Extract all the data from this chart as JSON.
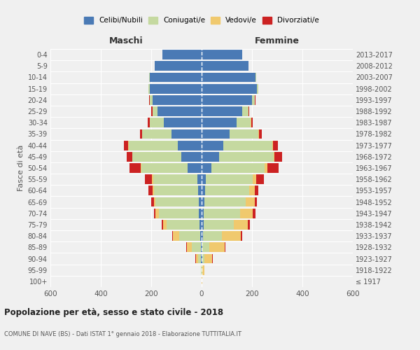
{
  "age_groups": [
    "100+",
    "95-99",
    "90-94",
    "85-89",
    "80-84",
    "75-79",
    "70-74",
    "65-69",
    "60-64",
    "55-59",
    "50-54",
    "45-49",
    "40-44",
    "35-39",
    "30-34",
    "25-29",
    "20-24",
    "15-19",
    "10-14",
    "5-9",
    "0-4"
  ],
  "birth_years": [
    "≤ 1917",
    "1918-1922",
    "1923-1927",
    "1928-1932",
    "1933-1937",
    "1938-1942",
    "1943-1947",
    "1948-1952",
    "1953-1957",
    "1958-1962",
    "1963-1967",
    "1968-1972",
    "1973-1977",
    "1978-1982",
    "1983-1987",
    "1988-1992",
    "1993-1997",
    "1998-2002",
    "2003-2007",
    "2008-2012",
    "2013-2017"
  ],
  "males": {
    "celibe": [
      0,
      0,
      2,
      4,
      5,
      8,
      10,
      12,
      15,
      18,
      55,
      80,
      95,
      120,
      150,
      175,
      195,
      205,
      205,
      185,
      155
    ],
    "coniugato": [
      0,
      2,
      12,
      35,
      85,
      130,
      160,
      170,
      175,
      175,
      185,
      195,
      195,
      115,
      55,
      20,
      10,
      5,
      2,
      0,
      0
    ],
    "vedovo": [
      0,
      2,
      8,
      20,
      25,
      15,
      12,
      8,
      5,
      3,
      2,
      1,
      1,
      0,
      0,
      0,
      0,
      0,
      0,
      0,
      0
    ],
    "divorziato": [
      0,
      0,
      2,
      2,
      3,
      5,
      8,
      10,
      15,
      30,
      45,
      20,
      18,
      10,
      8,
      5,
      2,
      0,
      0,
      0,
      0
    ]
  },
  "females": {
    "nubile": [
      0,
      0,
      2,
      3,
      5,
      8,
      8,
      10,
      15,
      18,
      40,
      70,
      85,
      110,
      140,
      160,
      200,
      220,
      215,
      185,
      160
    ],
    "coniugata": [
      0,
      2,
      10,
      28,
      75,
      120,
      145,
      165,
      175,
      185,
      210,
      215,
      195,
      115,
      55,
      25,
      12,
      5,
      2,
      0,
      0
    ],
    "vedova": [
      2,
      8,
      30,
      60,
      75,
      55,
      50,
      35,
      20,
      15,
      10,
      5,
      3,
      2,
      1,
      0,
      0,
      0,
      0,
      0,
      0
    ],
    "divorziata": [
      0,
      0,
      2,
      3,
      5,
      8,
      12,
      10,
      15,
      30,
      45,
      30,
      20,
      12,
      8,
      4,
      2,
      0,
      0,
      0,
      0
    ]
  },
  "colors": {
    "celibe": "#4a7ab5",
    "coniugato": "#c5d9a0",
    "vedovo": "#f0c96e",
    "divorziato": "#cc2222"
  },
  "xlim": 600,
  "title": "Popolazione per età, sesso e stato civile - 2018",
  "subtitle": "COMUNE DI NAVE (BS) - Dati ISTAT 1° gennaio 2018 - Elaborazione TUTTITALIA.IT",
  "ylabel_left": "Fasce di età",
  "xlabel_left": "Maschi",
  "xlabel_right": "Femmine",
  "legend_labels": [
    "Celibi/Nubili",
    "Coniugati/e",
    "Vedovi/e",
    "Divorziati/e"
  ],
  "bg_color": "#f0f0f0"
}
